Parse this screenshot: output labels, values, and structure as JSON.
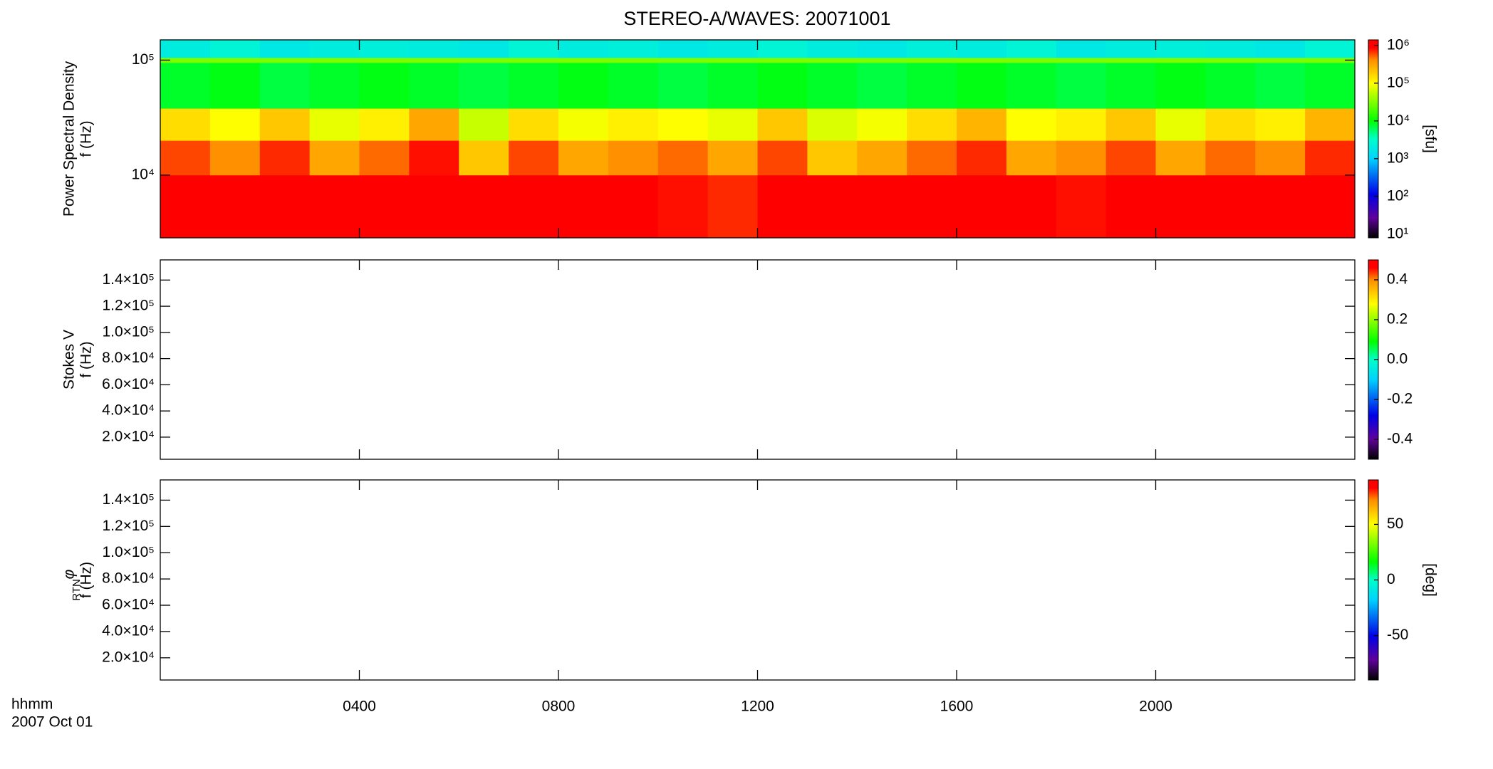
{
  "title": "STEREO-A/WAVES: 20071001",
  "x_axis_labels": [
    "hhmm",
    "2007 Oct 01"
  ],
  "colormap": [
    [
      0,
      "#000000"
    ],
    [
      0.1,
      "#60009a"
    ],
    [
      0.22,
      "#0000e6"
    ],
    [
      0.4,
      "#00d2ff"
    ],
    [
      0.5,
      "#00ffc8"
    ],
    [
      0.59,
      "#00ff00"
    ],
    [
      0.78,
      "#ffff00"
    ],
    [
      0.9,
      "#ff8c00"
    ],
    [
      0.96,
      "#ff0000"
    ],
    [
      1,
      "#ff0000"
    ]
  ],
  "chart_data": [
    {
      "type": "heatmap",
      "ylabel": "Power Spectral Density",
      "yunit": "f (Hz)",
      "ylog": true,
      "ylim": [
        2850,
        150000
      ],
      "yticks": [
        {
          "value": 10000,
          "label": "10⁴"
        },
        {
          "value": 100000,
          "label": "10⁵"
        }
      ],
      "xlim": [
        0,
        24
      ],
      "zlog": true,
      "zlim": [
        8,
        1400000
      ],
      "zlabel": "[sfu]",
      "zticks": [
        {
          "value": 10,
          "label": "10¹"
        },
        {
          "value": 100,
          "label": "10²"
        },
        {
          "value": 1000,
          "label": "10³"
        },
        {
          "value": 10000,
          "label": "10⁴"
        },
        {
          "value": 100000,
          "label": "10⁵"
        },
        {
          "value": 1000000,
          "label": "10⁶"
        }
      ],
      "x_edges": [
        0,
        1,
        2,
        3,
        4,
        5,
        6,
        7,
        8,
        9,
        10,
        11,
        12,
        13,
        14,
        15,
        16,
        17,
        18,
        19,
        20,
        21,
        22,
        23,
        24
      ],
      "y_edges": [
        2850,
        10000,
        20000,
        38000,
        95000,
        105000,
        150000
      ],
      "values": [
        [
          1000000,
          1000000,
          1000000,
          1000000,
          1000000,
          900000,
          1000000,
          1000000,
          1000000,
          1000000,
          800000,
          700000,
          1000000,
          1000000,
          1000000,
          1000000,
          1000000,
          1000000,
          800000,
          1000000,
          1000000,
          1000000,
          1000000,
          1000000
        ],
        [
          600000,
          400000,
          700000,
          300000,
          500000,
          800000,
          200000,
          600000,
          300000,
          400000,
          500000,
          300000,
          600000,
          200000,
          300000,
          500000,
          700000,
          300000,
          400000,
          600000,
          300000,
          500000,
          400000,
          700000
        ],
        [
          150000,
          100000,
          200000,
          80000,
          120000,
          300000,
          60000,
          150000,
          90000,
          120000,
          100000,
          80000,
          200000,
          70000,
          90000,
          150000,
          250000,
          100000,
          120000,
          200000,
          80000,
          150000,
          120000,
          250000
        ],
        [
          8000,
          9000,
          7000,
          8000,
          9000,
          8000,
          7000,
          8000,
          9000,
          8000,
          7000,
          8000,
          9000,
          8000,
          7000,
          8000,
          9000,
          8000,
          7000,
          8000,
          9000,
          8000,
          7000,
          8000
        ],
        [
          30000,
          30000,
          30000,
          30000,
          30000,
          30000,
          30000,
          30000,
          30000,
          30000,
          30000,
          30000,
          30000,
          30000,
          30000,
          30000,
          30000,
          30000,
          30000,
          30000,
          30000,
          30000,
          30000,
          30000
        ],
        [
          2000,
          2500,
          1800,
          2000,
          2200,
          2000,
          1800,
          2500,
          2000,
          2200,
          1800,
          2000,
          2500,
          2000,
          1800,
          2200,
          2000,
          2500,
          1800,
          2000,
          2200,
          2000,
          1800,
          2500
        ]
      ]
    },
    {
      "type": "heatmap",
      "ylabel": "Stokes V",
      "yunit": "f (Hz)",
      "ylim": [
        3100,
        155400
      ],
      "yticks": [
        {
          "value": 20000,
          "label": "2.0×10⁴"
        },
        {
          "value": 40000,
          "label": "4.0×10⁴"
        },
        {
          "value": 60000,
          "label": "6.0×10⁴"
        },
        {
          "value": 80000,
          "label": "8.0×10⁴"
        },
        {
          "value": 100000,
          "label": "1.0×10⁵"
        },
        {
          "value": 120000,
          "label": "1.2×10⁵"
        },
        {
          "value": 140000,
          "label": "1.4×10⁵"
        }
      ],
      "xlim": [
        0,
        24
      ],
      "zlim": [
        -0.5,
        0.5
      ],
      "zticks": [
        {
          "value": -0.4,
          "label": "-0.4"
        },
        {
          "value": -0.2,
          "label": "-0.2"
        },
        {
          "value": 0,
          "label": "0.0"
        },
        {
          "value": 0.2,
          "label": "0.2"
        },
        {
          "value": 0.4,
          "label": "0.4"
        }
      ]
    },
    {
      "type": "heatmap",
      "ylabel": "φ",
      "ylabel_sub": "RTN",
      "yunit": "f (Hz)",
      "ylim": [
        3100,
        155400
      ],
      "yticks": [
        {
          "value": 20000,
          "label": "2.0×10⁴"
        },
        {
          "value": 40000,
          "label": "4.0×10⁴"
        },
        {
          "value": 60000,
          "label": "6.0×10⁴"
        },
        {
          "value": 80000,
          "label": "8.0×10⁴"
        },
        {
          "value": 100000,
          "label": "1.0×10⁵"
        },
        {
          "value": 120000,
          "label": "1.2×10⁵"
        },
        {
          "value": 140000,
          "label": "1.4×10⁵"
        }
      ],
      "xlim": [
        0,
        24
      ],
      "xticks": [
        {
          "value": 4,
          "label": "0400"
        },
        {
          "value": 8,
          "label": "0800"
        },
        {
          "value": 12,
          "label": "1200"
        },
        {
          "value": 16,
          "label": "1600"
        },
        {
          "value": 20,
          "label": "2000"
        }
      ],
      "zlim": [
        -90,
        90
      ],
      "zlabel": "[deg]",
      "zticks": [
        -50,
        0,
        50
      ]
    }
  ]
}
